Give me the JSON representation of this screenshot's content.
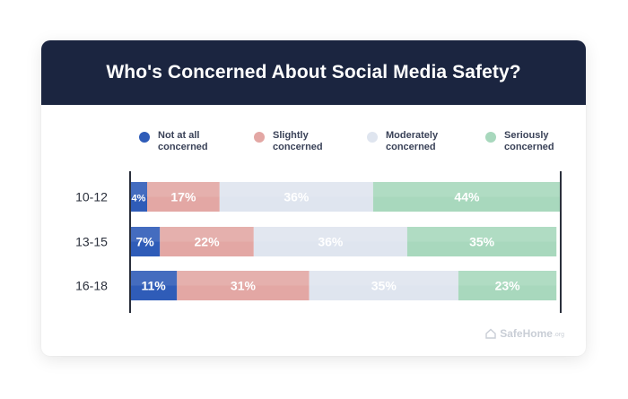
{
  "chart_data": {
    "type": "bar",
    "orientation": "horizontal",
    "stacked": true,
    "title": "Who's Concerned About Social Media Safety?",
    "categories": [
      "10-12",
      "13-15",
      "16-18"
    ],
    "series": [
      {
        "name": "Not at all concerned",
        "values": [
          4,
          7,
          11
        ],
        "labels": [
          "4%",
          "7%",
          "11%"
        ],
        "color": "#2f5cb8",
        "text_color": "#ffffff"
      },
      {
        "name": "Slightly concerned",
        "values": [
          17,
          22,
          31
        ],
        "labels": [
          "17%",
          "22%",
          "31%"
        ],
        "color": "#e3a7a4",
        "text_color": "#ffffff"
      },
      {
        "name": "Moderately concerned",
        "values": [
          36,
          36,
          35
        ],
        "labels": [
          "36%",
          "36%",
          "35%"
        ],
        "color": "#dfe5ef",
        "text_color": "#ffffff"
      },
      {
        "name": "Seriously concerned",
        "values": [
          44,
          35,
          23
        ],
        "labels": [
          "44%",
          "35%",
          "23%"
        ],
        "color": "#a8d8bd",
        "text_color": "#ffffff"
      }
    ],
    "legend": {
      "position": "top",
      "items": [
        {
          "line1": "Not at all",
          "line2": "concerned",
          "color": "#2f5cb8"
        },
        {
          "line1": "Slightly",
          "line2": "concerned",
          "color": "#e3a7a4"
        },
        {
          "line1": "Moderately",
          "line2": "concerned",
          "color": "#dfe5ef"
        },
        {
          "line1": "Seriously",
          "line2": "concerned",
          "color": "#a8d8bd"
        }
      ]
    },
    "xlim": [
      0,
      101
    ],
    "grid": false
  },
  "watermark": {
    "brand": "SafeHome",
    "suffix": ".org"
  },
  "colors": {
    "title_bar": "#1b2540",
    "axis": "#2a2f3b",
    "category_text": "#2a2f3b"
  }
}
